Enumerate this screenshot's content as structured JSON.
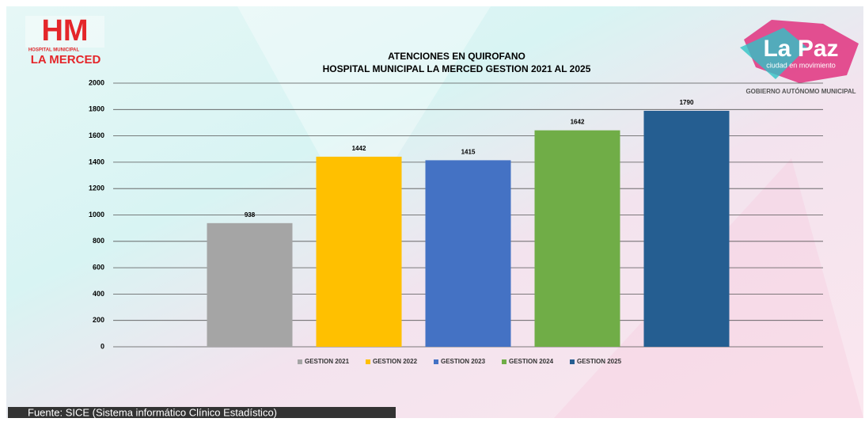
{
  "logo_left": {
    "mark": "HM",
    "line1": "HOSPITAL MUNICIPAL",
    "line2": "LA MERCED"
  },
  "logo_right": {
    "mark": "La Paz",
    "tagline": "ciudad en movimiento",
    "caption": "GOBIERNO AUTÓNOMO MUNICIPAL"
  },
  "source": "Fuente: SICE (Sistema informático Clínico Estadístico)",
  "chart_data": {
    "type": "bar",
    "title": "ATENCIONES EN QUIROFANO",
    "subtitle": "HOSPITAL MUNICIPAL LA MERCED GESTION 2021 AL 2025",
    "categories": [
      null
    ],
    "series": [
      {
        "name": "GESTION 2021",
        "color": "#a5a5a5",
        "values": [
          938
        ]
      },
      {
        "name": "GESTION 2022",
        "color": "#ffc000",
        "values": [
          1442
        ]
      },
      {
        "name": "GESTION 2023",
        "color": "#4472c4",
        "values": [
          1415
        ]
      },
      {
        "name": "GESTION 2024",
        "color": "#70ad47",
        "values": [
          1642
        ]
      },
      {
        "name": "GESTION 2025",
        "color": "#255e91",
        "values": [
          1790
        ]
      }
    ],
    "ylim": [
      0,
      2000
    ],
    "yticks": [
      0,
      200,
      400,
      600,
      800,
      1000,
      1200,
      1400,
      1600,
      1800,
      2000
    ],
    "grid": true,
    "legend": "bottom"
  }
}
